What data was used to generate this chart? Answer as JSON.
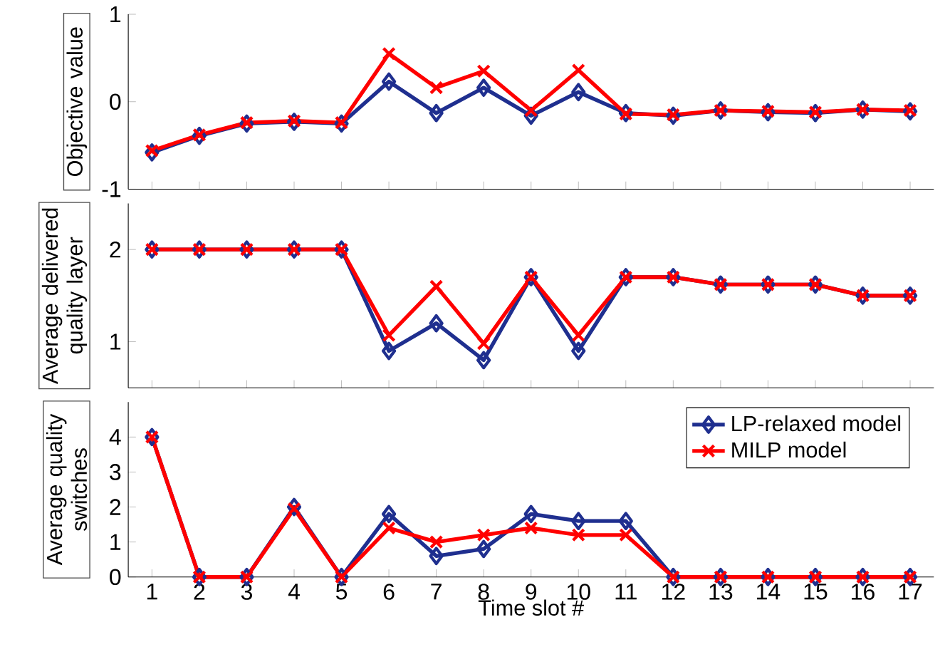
{
  "chart_data": [
    {
      "type": "line",
      "ylabel": "Objective value",
      "x": [
        1,
        2,
        3,
        4,
        5,
        6,
        7,
        8,
        9,
        10,
        11,
        12,
        13,
        14,
        15,
        16,
        17
      ],
      "xlim": [
        0.5,
        17.5
      ],
      "xticks": [
        1,
        2,
        3,
        4,
        5,
        6,
        7,
        8,
        9,
        10,
        11,
        12,
        13,
        14,
        15,
        16,
        17
      ],
      "ylim": [
        -1,
        1
      ],
      "yticks": [
        -1,
        0,
        1
      ],
      "tick_labels": "y",
      "grid": false,
      "legend": false,
      "series": [
        {
          "color": "#1f2f8f",
          "marker": "diamond",
          "values": [
            -0.58,
            -0.39,
            -0.25,
            -0.23,
            -0.25,
            0.23,
            -0.13,
            0.16,
            -0.16,
            0.11,
            -0.13,
            -0.16,
            -0.1,
            -0.12,
            -0.13,
            -0.09,
            -0.11
          ]
        },
        {
          "color": "#ff0000",
          "marker": "cross",
          "values": [
            -0.56,
            -0.38,
            -0.24,
            -0.22,
            -0.24,
            0.55,
            0.16,
            0.35,
            -0.1,
            0.36,
            -0.14,
            -0.15,
            -0.1,
            -0.11,
            -0.12,
            -0.09,
            -0.1
          ]
        }
      ]
    },
    {
      "type": "line",
      "ylabel": "Average delivered quality layer",
      "x": [
        1,
        2,
        3,
        4,
        5,
        6,
        7,
        8,
        9,
        10,
        11,
        12,
        13,
        14,
        15,
        16,
        17
      ],
      "xlim": [
        0.5,
        17.5
      ],
      "xticks": [
        1,
        2,
        3,
        4,
        5,
        6,
        7,
        8,
        9,
        10,
        11,
        12,
        13,
        14,
        15,
        16,
        17
      ],
      "ylim": [
        0.5,
        2.5
      ],
      "yticks": [
        1,
        2
      ],
      "tick_labels": "y",
      "grid": false,
      "legend": false,
      "series": [
        {
          "color": "#1f2f8f",
          "marker": "diamond",
          "values": [
            2,
            2,
            2,
            2,
            2,
            0.9,
            1.2,
            0.8,
            1.7,
            0.9,
            1.7,
            1.7,
            1.62,
            1.62,
            1.62,
            1.5,
            1.5
          ]
        },
        {
          "color": "#ff0000",
          "marker": "cross",
          "values": [
            2,
            2,
            2,
            2,
            2,
            1.07,
            1.6,
            0.98,
            1.7,
            1.07,
            1.7,
            1.7,
            1.62,
            1.62,
            1.62,
            1.5,
            1.5
          ]
        }
      ]
    },
    {
      "type": "line",
      "ylabel": "Average quality switches",
      "xlabel": "Time slot #",
      "x": [
        1,
        2,
        3,
        4,
        5,
        6,
        7,
        8,
        9,
        10,
        11,
        12,
        13,
        14,
        15,
        16,
        17
      ],
      "xlim": [
        0.5,
        17.5
      ],
      "xticks": [
        1,
        2,
        3,
        4,
        5,
        6,
        7,
        8,
        9,
        10,
        11,
        12,
        13,
        14,
        15,
        16,
        17
      ],
      "ylim": [
        0,
        5
      ],
      "yticks": [
        0,
        1,
        2,
        3,
        4
      ],
      "grid": false,
      "legend": "top right",
      "series": [
        {
          "name": "LP-relaxed model",
          "color": "#1f2f8f",
          "marker": "diamond",
          "values": [
            4,
            0,
            0,
            2,
            0,
            1.8,
            0.6,
            0.8,
            1.8,
            1.6,
            1.6,
            0,
            0,
            0,
            0,
            0,
            0
          ]
        },
        {
          "name": "MILP model",
          "color": "#ff0000",
          "marker": "cross",
          "values": [
            4,
            0,
            0,
            1.95,
            0,
            1.4,
            1,
            1.2,
            1.4,
            1.2,
            1.2,
            0,
            0,
            0,
            0,
            0,
            0
          ]
        }
      ]
    }
  ]
}
